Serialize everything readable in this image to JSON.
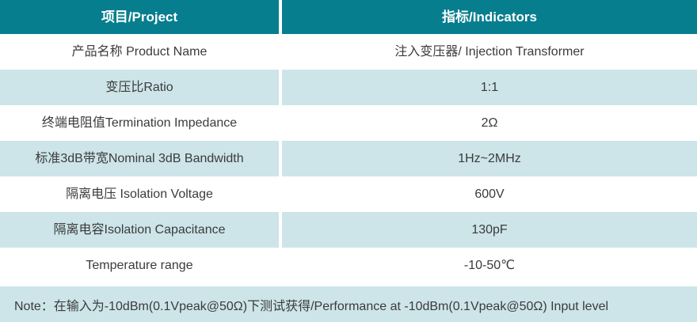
{
  "table": {
    "header": {
      "project": "项目/Project",
      "indicators": "指标/Indicators"
    },
    "rows": [
      {
        "label": "产品名称 Product Name",
        "value": "注入变压器/ Injection Transformer"
      },
      {
        "label": "变压比Ratio",
        "value": "1:1"
      },
      {
        "label": "终端电阻值Termination Impedance",
        "value": "2Ω"
      },
      {
        "label": "标准3dB带宽Nominal 3dB Bandwidth",
        "value": "1Hz~2MHz"
      },
      {
        "label": "隔离电压 Isolation Voltage",
        "value": "600V"
      },
      {
        "label": "隔离电容Isolation Capacitance",
        "value": "130pF"
      },
      {
        "label": "Temperature range",
        "value": "-10-50℃"
      }
    ],
    "note": "Note：在输入为-10dBm(0.1Vpeak@50Ω)下测试获得/Performance at -10dBm(0.1Vpeak@50Ω) Input level"
  },
  "colors": {
    "header_bg": "#077e8e",
    "alt_row_bg": "#cde5e9",
    "row_bg": "#ffffff",
    "text": "#3b3b3b",
    "header_text": "#ffffff"
  }
}
